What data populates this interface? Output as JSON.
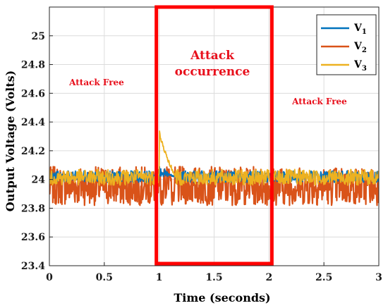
{
  "chart_data": {
    "type": "line",
    "xlabel": "Time (seconds)",
    "ylabel": "Output Voltage (Volts)",
    "xlim": [
      0,
      3
    ],
    "ylim": [
      23.4,
      25.2
    ],
    "x_ticks": [
      "0",
      "0.5",
      "1",
      "1.5",
      "2",
      "2.5",
      "3"
    ],
    "y_ticks": [
      "23.4",
      "23.6",
      "23.8",
      "24",
      "24.2",
      "24.4",
      "24.6",
      "24.8",
      "25"
    ],
    "grid": true,
    "legend_position": "top-right",
    "series": [
      {
        "name": "V",
        "subscript": "1",
        "color": "#0072bd",
        "mean": 24.02,
        "band": [
          23.98,
          24.06
        ]
      },
      {
        "name": "V",
        "subscript": "2",
        "color": "#d95319",
        "mean": 23.99,
        "band": [
          23.82,
          24.09
        ]
      },
      {
        "name": "V",
        "subscript": "3",
        "color": "#edb120",
        "mean": 24.02,
        "band": [
          23.96,
          24.07
        ]
      }
    ],
    "attack_window": [
      1,
      2
    ],
    "attack_peak": {
      "x": 1.02,
      "V3": 24.35,
      "V2_low": 23.79
    },
    "annotations": {
      "attack_free_left": "Attack Free",
      "attack_occurrence_line1": "Attack",
      "attack_occurrence_line2": "occurrence",
      "attack_free_right": "Attack Free"
    }
  }
}
